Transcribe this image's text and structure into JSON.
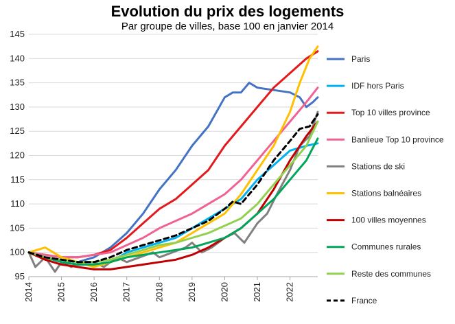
{
  "chart_data": {
    "type": "line",
    "title": "Evolution du prix des logements",
    "subtitle": "Par groupe de villes, base 100 en janvier 2014",
    "xlabel": "",
    "ylabel": "",
    "xlim": [
      2014,
      2022.85
    ],
    "ylim": [
      95,
      145
    ],
    "x_ticks": [
      "2014",
      "2015",
      "2016",
      "2017",
      "2018",
      "2019",
      "2020",
      "2021",
      "2022"
    ],
    "y_ticks": [
      "95",
      "100",
      "105",
      "110",
      "115",
      "120",
      "125",
      "130",
      "135",
      "140",
      "145"
    ],
    "grid": "horizontal",
    "legend_position": "right",
    "series": [
      {
        "name": "Paris",
        "color": "#4472C4",
        "dash": false,
        "x": [
          2014,
          2014.5,
          2015,
          2015.5,
          2016,
          2016.5,
          2017,
          2017.5,
          2018,
          2018.5,
          2019,
          2019.5,
          2020,
          2020.25,
          2020.5,
          2020.75,
          2021,
          2021.5,
          2022,
          2022.3,
          2022.5,
          2022.7,
          2022.85
        ],
        "y": [
          100,
          99,
          98.5,
          98,
          99,
          101,
          104,
          108,
          113,
          117,
          122,
          126,
          132,
          133,
          133,
          135,
          134,
          133.5,
          133,
          132,
          130,
          131,
          132
        ]
      },
      {
        "name": "IDF hors Paris",
        "color": "#00B0F0",
        "dash": false,
        "x": [
          2014,
          2014.5,
          2015,
          2015.5,
          2016,
          2016.5,
          2017,
          2017.5,
          2018,
          2018.5,
          2019,
          2019.5,
          2020,
          2020.5,
          2021,
          2021.5,
          2022,
          2022.5,
          2022.85
        ],
        "y": [
          100,
          99,
          98,
          97.5,
          97.5,
          98,
          100,
          101,
          102,
          103,
          105,
          107,
          109,
          111,
          115,
          118,
          121,
          122,
          122.5
        ]
      },
      {
        "name": "Top 10 villes province",
        "color": "#E31A1C",
        "dash": false,
        "x": [
          2014,
          2014.5,
          2015,
          2015.5,
          2016,
          2016.5,
          2017,
          2017.5,
          2018,
          2018.5,
          2019,
          2019.5,
          2020,
          2020.5,
          2021,
          2021.5,
          2022,
          2022.5,
          2022.85
        ],
        "y": [
          100,
          99.5,
          99,
          99,
          99.5,
          100.5,
          103,
          106,
          109,
          111,
          114,
          117,
          122,
          126,
          130,
          134,
          137,
          140,
          141.5
        ]
      },
      {
        "name": "Banlieue Top 10 province",
        "color": "#F06292",
        "dash": false,
        "x": [
          2014,
          2014.5,
          2015,
          2015.5,
          2016,
          2016.5,
          2017,
          2017.5,
          2018,
          2018.5,
          2019,
          2019.5,
          2020,
          2020.5,
          2021,
          2021.5,
          2022,
          2022.5,
          2022.85
        ],
        "y": [
          100,
          99.5,
          99,
          99,
          99.5,
          100,
          101.5,
          103,
          105,
          106.5,
          108,
          110,
          112,
          115,
          119,
          123,
          127,
          131,
          134
        ]
      },
      {
        "name": "Stations de ski",
        "color": "#808080",
        "dash": false,
        "x": [
          2014,
          2014.2,
          2014.5,
          2014.8,
          2015,
          2015.3,
          2015.6,
          2016,
          2016.3,
          2016.7,
          2017,
          2017.4,
          2017.8,
          2018,
          2018.4,
          2018.8,
          2019,
          2019.3,
          2019.6,
          2020,
          2020.3,
          2020.6,
          2021,
          2021.3,
          2021.6,
          2022,
          2022.3,
          2022.6,
          2022.85
        ],
        "y": [
          100,
          97,
          99,
          96,
          98,
          97,
          98,
          98,
          97,
          99,
          98,
          99,
          100,
          99,
          100,
          101,
          102,
          100,
          101,
          103,
          104,
          102,
          106,
          108,
          112,
          117,
          122,
          124,
          129
        ]
      },
      {
        "name": "Stations balnéaires",
        "color": "#FFC000",
        "dash": false,
        "x": [
          2014,
          2014.5,
          2015,
          2015.5,
          2016,
          2016.5,
          2017,
          2017.5,
          2018,
          2018.5,
          2019,
          2019.5,
          2020,
          2020.5,
          2021,
          2021.5,
          2022,
          2022.3,
          2022.6,
          2022.85
        ],
        "y": [
          100,
          101,
          99,
          98,
          97,
          98,
          99,
          100,
          101,
          102,
          104,
          106,
          108,
          112,
          117,
          122,
          129,
          135,
          140,
          142.5
        ]
      },
      {
        "name": "100 villes moyennes",
        "color": "#C00000",
        "dash": false,
        "x": [
          2014,
          2014.5,
          2015,
          2015.5,
          2016,
          2016.5,
          2017,
          2017.5,
          2018,
          2018.5,
          2019,
          2019.5,
          2020,
          2020.5,
          2021,
          2021.5,
          2022,
          2022.5,
          2022.85
        ],
        "y": [
          100,
          98.5,
          97.5,
          97,
          96.5,
          96.5,
          97,
          97.5,
          98,
          98.5,
          99.5,
          101,
          103,
          105,
          108,
          113,
          119,
          124,
          127
        ]
      },
      {
        "name": "Communes rurales",
        "color": "#00A65A",
        "dash": false,
        "x": [
          2014,
          2014.5,
          2015,
          2015.5,
          2016,
          2016.5,
          2017,
          2017.5,
          2018,
          2018.5,
          2019,
          2019.5,
          2020,
          2020.5,
          2021,
          2021.5,
          2022,
          2022.5,
          2022.85
        ],
        "y": [
          100,
          99,
          98,
          97.5,
          97.5,
          98,
          99,
          99.5,
          100,
          100.5,
          101,
          102,
          103,
          105,
          108,
          111,
          115,
          119,
          123.5
        ]
      },
      {
        "name": "Reste des communes",
        "color": "#92D050",
        "dash": false,
        "x": [
          2014,
          2014.5,
          2015,
          2015.5,
          2016,
          2016.5,
          2017,
          2017.5,
          2018,
          2018.5,
          2019,
          2019.5,
          2020,
          2020.5,
          2021,
          2021.5,
          2022,
          2022.5,
          2022.85
        ],
        "y": [
          100,
          99,
          98.5,
          98,
          98,
          98.5,
          99.5,
          100.5,
          101.5,
          102,
          103,
          104,
          105.5,
          107,
          110,
          114,
          118,
          122,
          127
        ]
      },
      {
        "name": "France",
        "color": "#000000",
        "dash": true,
        "x": [
          2014,
          2014.5,
          2015,
          2015.5,
          2016,
          2016.5,
          2017,
          2017.5,
          2018,
          2018.5,
          2019,
          2019.5,
          2020,
          2020.25,
          2020.5,
          2021,
          2021.5,
          2022,
          2022.3,
          2022.6,
          2022.85
        ],
        "y": [
          100,
          99,
          98.5,
          98,
          98,
          99,
          100.5,
          101.5,
          102.5,
          103.5,
          105,
          106.5,
          109,
          110.5,
          110,
          114,
          119,
          123,
          125.5,
          126,
          128.5
        ]
      }
    ]
  }
}
